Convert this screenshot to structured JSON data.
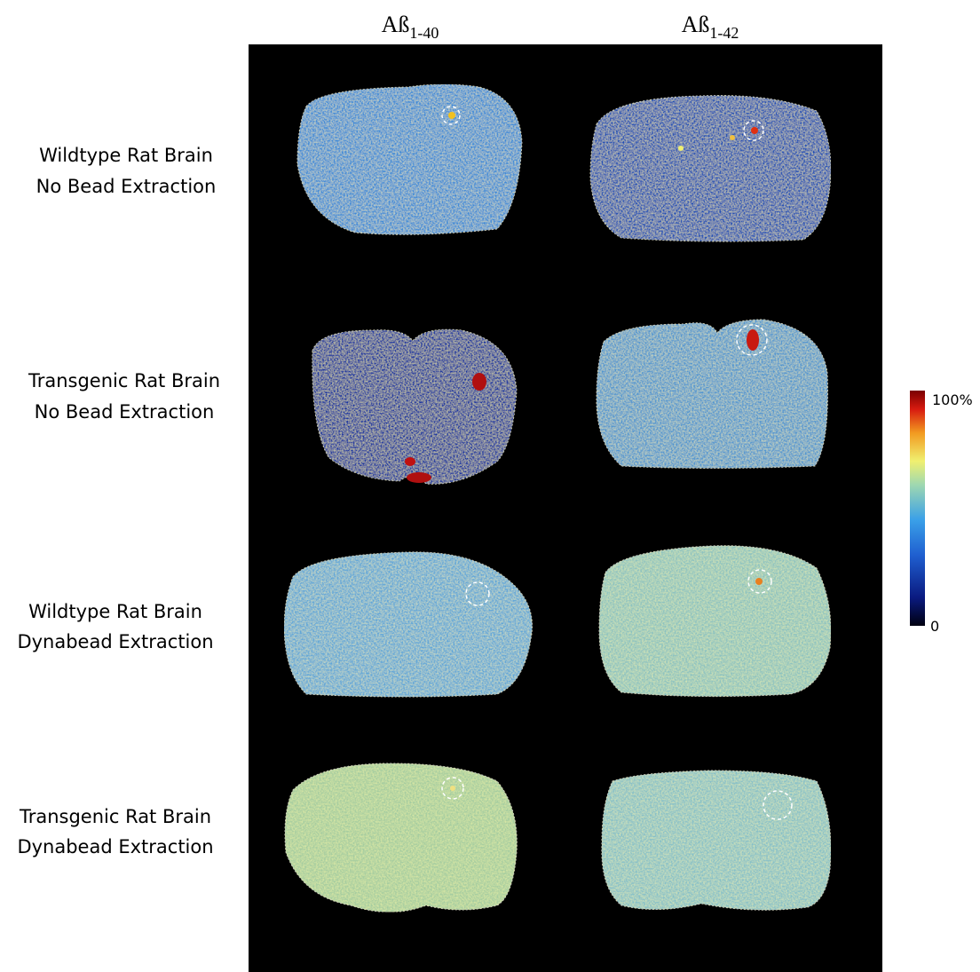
{
  "columns": [
    {
      "label": "Aß",
      "subscript": "1-40"
    },
    {
      "label": "Aß",
      "subscript": "1-42"
    }
  ],
  "rows": [
    {
      "line1": "Wildtype Rat Brain",
      "line2": "No Bead Extraction"
    },
    {
      "line1": "Transgenic Rat Brain",
      "line2": "No Bead Extraction"
    },
    {
      "line1": "Wildtype Rat Brain",
      "line2": "Dynabead Extraction"
    },
    {
      "line1": "Transgenic Rat Brain",
      "line2": "Dynabead Extraction"
    }
  ],
  "colorbar": {
    "max_label": "100%",
    "min_label": "0"
  }
}
